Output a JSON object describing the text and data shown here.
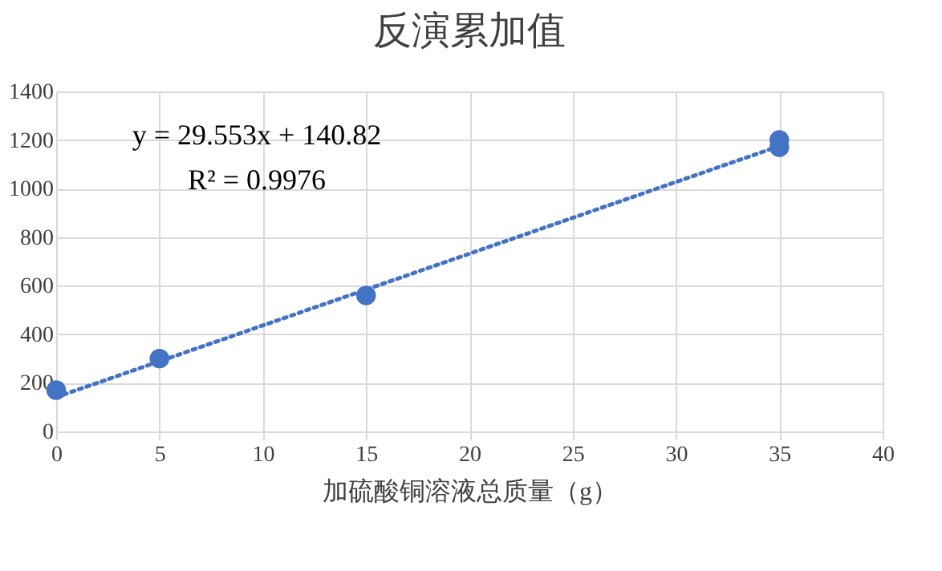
{
  "chart_data": {
    "type": "scatter",
    "title": "反演累加值",
    "xlabel": "加硫酸铜溶液总质量（g）",
    "series": [
      {
        "type": "line",
        "color": "#4472c4",
        "x": [
          0,
          35
        ],
        "values": [
          141,
          1175
        ],
        "line_style": "dotted",
        "marker": "none"
      },
      {
        "color": "#4472c4",
        "x": [
          0,
          5,
          15,
          35,
          35
        ],
        "values": [
          170,
          300,
          560,
          1200,
          1170
        ],
        "marker": "circle"
      }
    ],
    "xlim": [
      0,
      40
    ],
    "xticks": [
      0,
      5,
      10,
      15,
      20,
      25,
      30,
      35,
      40
    ],
    "ylim": [
      0,
      1400
    ],
    "yticks": [
      0,
      200,
      400,
      600,
      800,
      1000,
      1200,
      1400
    ],
    "grid": true,
    "annotations": [
      "y = 29.553x + 140.82",
      "R² = 0.9976"
    ]
  }
}
